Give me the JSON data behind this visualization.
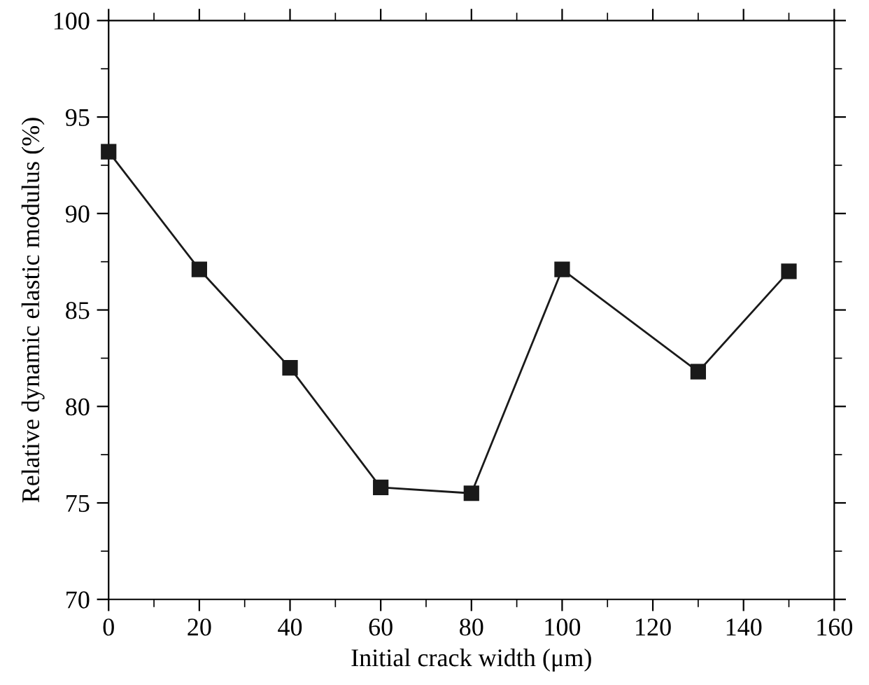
{
  "chart_data": {
    "type": "line",
    "xlabel": "Initial crack width (μm)",
    "ylabel": "Relative dynamic elastic modulus (%)",
    "x": [
      0,
      20,
      40,
      60,
      80,
      100,
      130,
      150
    ],
    "series": [
      {
        "color": "#1a1a1a",
        "values": [
          93.2,
          87.1,
          82.0,
          75.8,
          75.5,
          87.1,
          81.8,
          87.0
        ]
      }
    ],
    "xlim": [
      0,
      160
    ],
    "xticks": [
      0,
      20,
      40,
      60,
      80,
      100,
      120,
      140,
      160
    ],
    "ylim": [
      70,
      100
    ],
    "yticks": [
      70,
      75,
      80,
      85,
      90,
      95,
      100
    ],
    "marker": "square",
    "line_style": "solid",
    "grid": false,
    "legend": false
  }
}
